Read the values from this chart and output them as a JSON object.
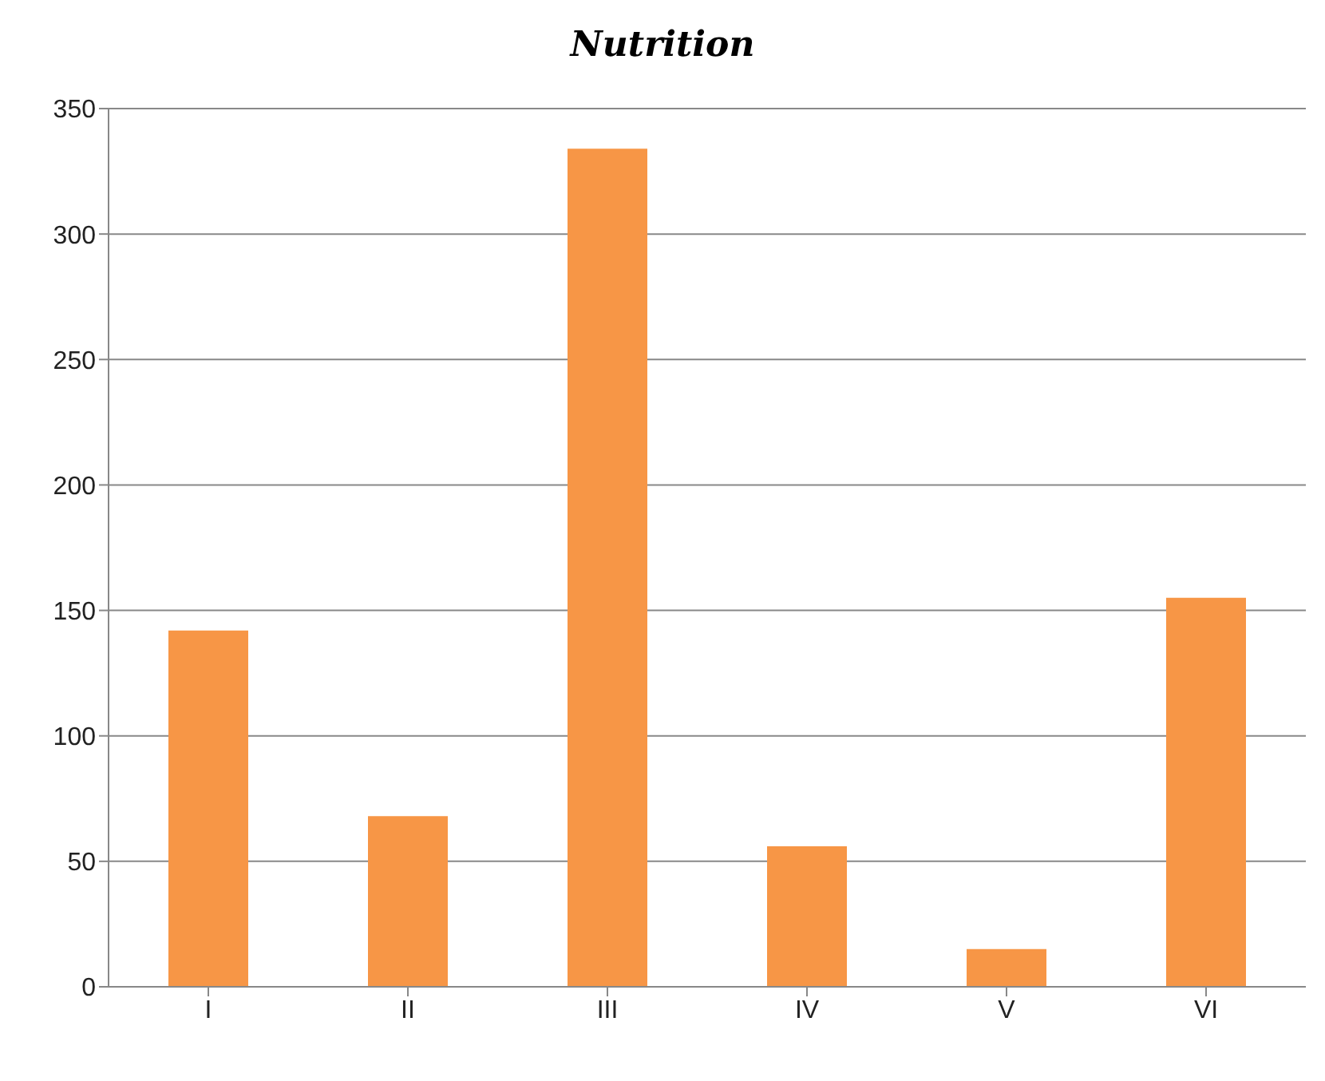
{
  "chart_data": {
    "type": "bar",
    "title": "Nutrition",
    "categories": [
      "I",
      "II",
      "III",
      "IV",
      "V",
      "VI"
    ],
    "values": [
      142,
      68,
      334,
      56,
      15,
      155
    ],
    "color": "#f79646",
    "ylim": [
      0,
      350
    ],
    "yticks": [
      0,
      50,
      100,
      150,
      200,
      250,
      300,
      350
    ],
    "grid": "y"
  }
}
